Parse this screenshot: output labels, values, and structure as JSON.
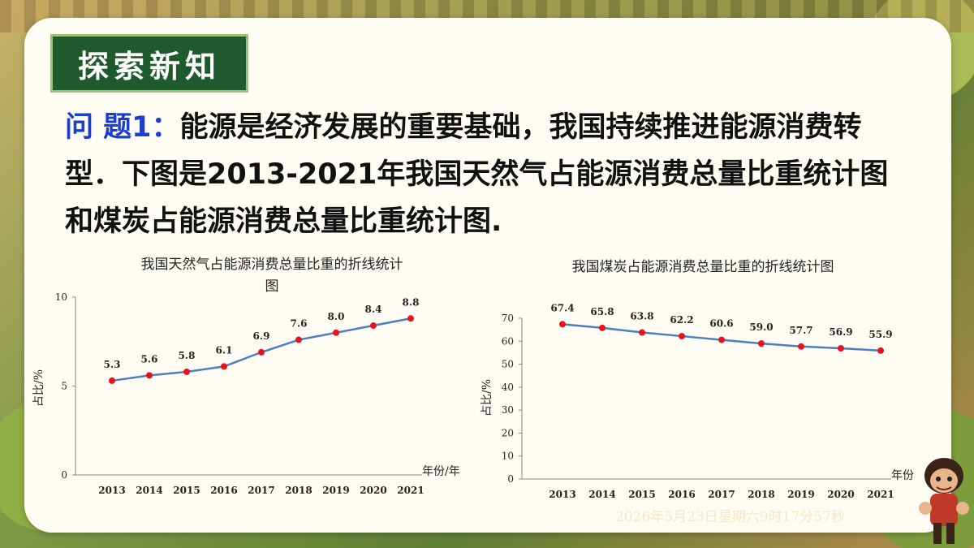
{
  "section_tag": "探索新知",
  "problem": {
    "label": "问 题1：",
    "text": "能源是经济发展的重要基础，我国持续推进能源消费转型．下图是2013-2021年我国天然气占能源消费总量比重统计图和煤炭占能源消费总量比重统计图."
  },
  "timestamp": "2026年5月23日星期六9时17分57秒",
  "colors": {
    "line": "#4a7fc0",
    "point": "#e8141b",
    "tag_bg": "#1e5a2c",
    "label_blue": "#1a3fd0"
  },
  "chart_data": [
    {
      "type": "line",
      "title_line1": "我国天然气占能源消费总量比重的折线统计",
      "title_line2": "图",
      "xlabel": "年份/年",
      "ylabel": "占比/%",
      "categories": [
        "2013",
        "2014",
        "2015",
        "2016",
        "2017",
        "2018",
        "2019",
        "2020",
        "2021"
      ],
      "values": [
        5.3,
        5.6,
        5.8,
        6.1,
        6.9,
        7.6,
        8.0,
        8.4,
        8.8
      ],
      "value_labels": [
        "5.3",
        "5.6",
        "5.8",
        "6.1",
        "6.9",
        "7.6",
        "8.0",
        "8.4",
        "8.8"
      ],
      "ylim": [
        0,
        10
      ],
      "yticks": [
        0,
        5,
        10
      ],
      "grid": false
    },
    {
      "type": "line",
      "title_line1": "我国煤炭占能源消费总量比重的折线统计图",
      "title_line2": "",
      "xlabel": "年份",
      "ylabel": "占比/%",
      "categories": [
        "2013",
        "2014",
        "2015",
        "2016",
        "2017",
        "2018",
        "2019",
        "2020",
        "2021"
      ],
      "values": [
        67.4,
        65.8,
        63.8,
        62.2,
        60.6,
        59.0,
        57.7,
        56.9,
        55.9
      ],
      "value_labels": [
        "67.4",
        "65.8",
        "63.8",
        "62.2",
        "60.6",
        "59.0",
        "57.7",
        "56.9",
        "55.9"
      ],
      "ylim": [
        0,
        70
      ],
      "yticks": [
        0,
        10,
        20,
        30,
        40,
        50,
        60,
        70
      ],
      "grid": false
    }
  ]
}
